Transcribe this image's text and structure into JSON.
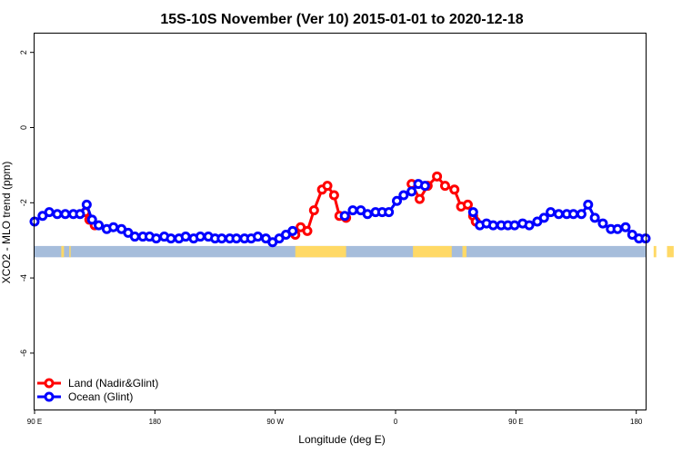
{
  "chart_data": {
    "type": "line",
    "title": "15S-10S November (Ver 10)   2015-01-01 to 2020-12-18",
    "xlabel": "Longitude (deg E)",
    "ylabel": "XCO2 - MLO trend (ppm)",
    "xlim": [
      90,
      547
    ],
    "ylim": [
      -7.5,
      2.5
    ],
    "y_ticks": [
      2,
      0,
      -2,
      -4,
      -6
    ],
    "x_ticks": [
      {
        "value": 90,
        "label": "90 E"
      },
      {
        "value": 180,
        "label": "180"
      },
      {
        "value": 270,
        "label": "90 W"
      },
      {
        "value": 360,
        "label": "0"
      },
      {
        "value": 450,
        "label": "90 E"
      },
      {
        "value": 540,
        "label": "180"
      }
    ],
    "legend": {
      "placement": "bottom-left"
    },
    "colors": {
      "land": "#ff0000",
      "ocean": "#0000ff",
      "sea_band": "#a6bddb",
      "land_band": "#ffd966"
    },
    "surface_band": {
      "y_range": [
        -3.45,
        -3.15
      ],
      "land_segments": [
        [
          110,
          112
        ],
        [
          116,
          117
        ],
        [
          285,
          323
        ],
        [
          373,
          402
        ],
        [
          410,
          413
        ],
        [
          553,
          555
        ],
        [
          563,
          568
        ],
        [
          575,
          576
        ]
      ]
    },
    "series": [
      {
        "name": "Land (Nadir&Glint)",
        "color": "#ff0000",
        "x": [
          128,
          131,
          135,
          285,
          289,
          294,
          299,
          305,
          309,
          314,
          318,
          323,
          372,
          378,
          384,
          391,
          397,
          404,
          409,
          414,
          418,
          420
        ],
        "y": [
          -2.25,
          -2.45,
          -2.6,
          -2.85,
          -2.65,
          -2.75,
          -2.2,
          -1.65,
          -1.55,
          -1.8,
          -2.35,
          -2.4,
          -1.5,
          -1.9,
          -1.55,
          -1.3,
          -1.55,
          -1.65,
          -2.1,
          -2.05,
          -2.35,
          -2.5
        ]
      },
      {
        "name": "Ocean (Glint)",
        "color": "#0000ff",
        "x": [
          90,
          96,
          101,
          107,
          113,
          119,
          124,
          129,
          133,
          138,
          144,
          149,
          155,
          160,
          165,
          171,
          176,
          181,
          187,
          192,
          198,
          203,
          209,
          214,
          220,
          225,
          230,
          236,
          241,
          247,
          252,
          257,
          263,
          268,
          273,
          278,
          283,
          322,
          328,
          334,
          339,
          345,
          350,
          355,
          361,
          366,
          372,
          377,
          382,
          418,
          423,
          428,
          433,
          439,
          444,
          449,
          455,
          460,
          466,
          471,
          476,
          482,
          488,
          493,
          499,
          504,
          509,
          515,
          521,
          526,
          532,
          537,
          542,
          547
        ],
        "y": [
          -2.5,
          -2.35,
          -2.25,
          -2.3,
          -2.3,
          -2.3,
          -2.3,
          -2.05,
          -2.45,
          -2.6,
          -2.7,
          -2.65,
          -2.7,
          -2.8,
          -2.9,
          -2.9,
          -2.9,
          -2.95,
          -2.9,
          -2.95,
          -2.95,
          -2.9,
          -2.95,
          -2.9,
          -2.9,
          -2.95,
          -2.95,
          -2.95,
          -2.95,
          -2.95,
          -2.95,
          -2.9,
          -2.95,
          -3.05,
          -2.95,
          -2.85,
          -2.75,
          -2.35,
          -2.2,
          -2.2,
          -2.3,
          -2.25,
          -2.25,
          -2.25,
          -1.95,
          -1.8,
          -1.7,
          -1.5,
          -1.55,
          -2.25,
          -2.6,
          -2.55,
          -2.6,
          -2.6,
          -2.6,
          -2.6,
          -2.55,
          -2.6,
          -2.5,
          -2.4,
          -2.25,
          -2.3,
          -2.3,
          -2.3,
          -2.3,
          -2.05,
          -2.4,
          -2.55,
          -2.7,
          -2.7,
          -2.65,
          -2.85,
          -2.95,
          -2.95
        ]
      }
    ]
  }
}
